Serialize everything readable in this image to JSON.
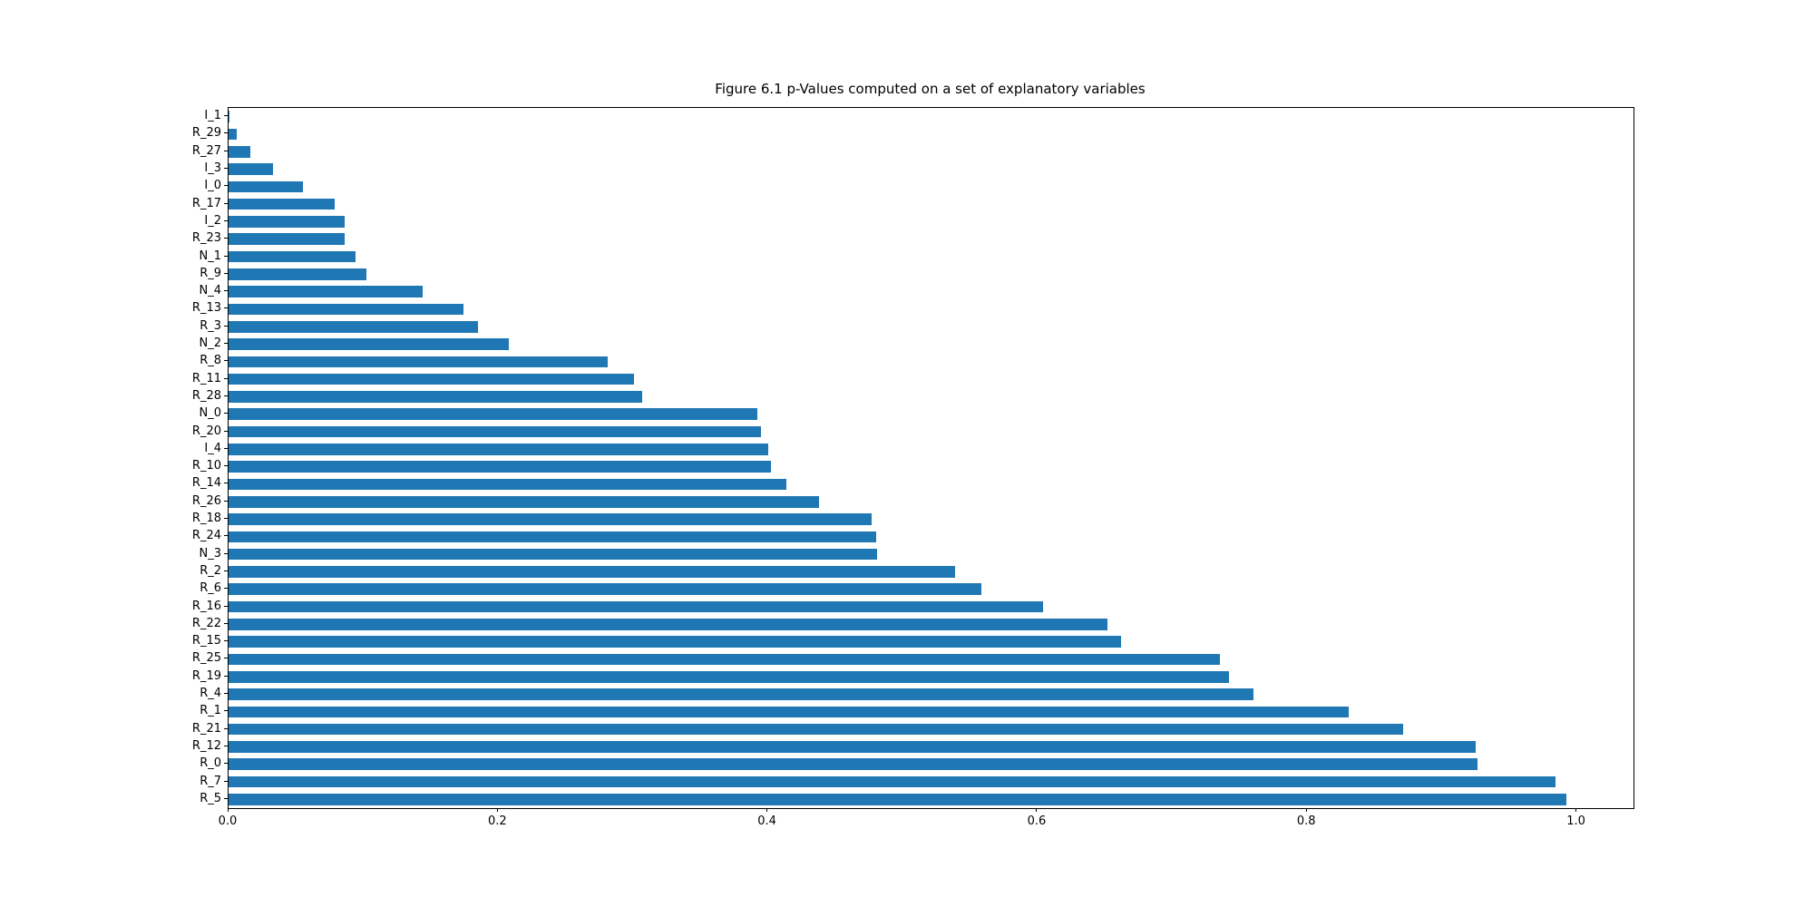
{
  "chart_data": {
    "type": "bar",
    "orientation": "horizontal",
    "title": "Figure 6.1 p-Values computed on a set of explanatory variables",
    "xlabel": "",
    "ylabel": "",
    "categories": [
      "I_1",
      "R_29",
      "R_27",
      "I_3",
      "I_0",
      "R_17",
      "I_2",
      "R_23",
      "N_1",
      "R_9",
      "N_4",
      "R_13",
      "R_3",
      "N_2",
      "R_8",
      "R_11",
      "R_28",
      "N_0",
      "R_20",
      "I_4",
      "R_10",
      "R_14",
      "R_26",
      "R_18",
      "R_24",
      "N_3",
      "R_2",
      "R_6",
      "R_16",
      "R_22",
      "R_15",
      "R_25",
      "R_19",
      "R_4",
      "R_1",
      "R_21",
      "R_12",
      "R_0",
      "R_7",
      "R_5"
    ],
    "values": [
      0.001,
      0.006,
      0.016,
      0.033,
      0.055,
      0.079,
      0.086,
      0.086,
      0.094,
      0.102,
      0.144,
      0.174,
      0.185,
      0.208,
      0.281,
      0.301,
      0.307,
      0.392,
      0.395,
      0.4,
      0.402,
      0.414,
      0.438,
      0.477,
      0.48,
      0.481,
      0.539,
      0.558,
      0.604,
      0.652,
      0.662,
      0.735,
      0.742,
      0.76,
      0.831,
      0.871,
      0.925,
      0.926,
      0.984,
      0.992
    ],
    "xlim": [
      0,
      1.042
    ],
    "x_ticks": [
      0.0,
      0.2,
      0.4,
      0.6,
      0.8,
      1.0
    ],
    "x_tick_labels": [
      "0.0",
      "0.2",
      "0.4",
      "0.6",
      "0.8",
      "1.0"
    ],
    "bar_color": "#1f77b4",
    "bar_fraction_of_row": 0.65,
    "grid": false,
    "legend": "none"
  }
}
